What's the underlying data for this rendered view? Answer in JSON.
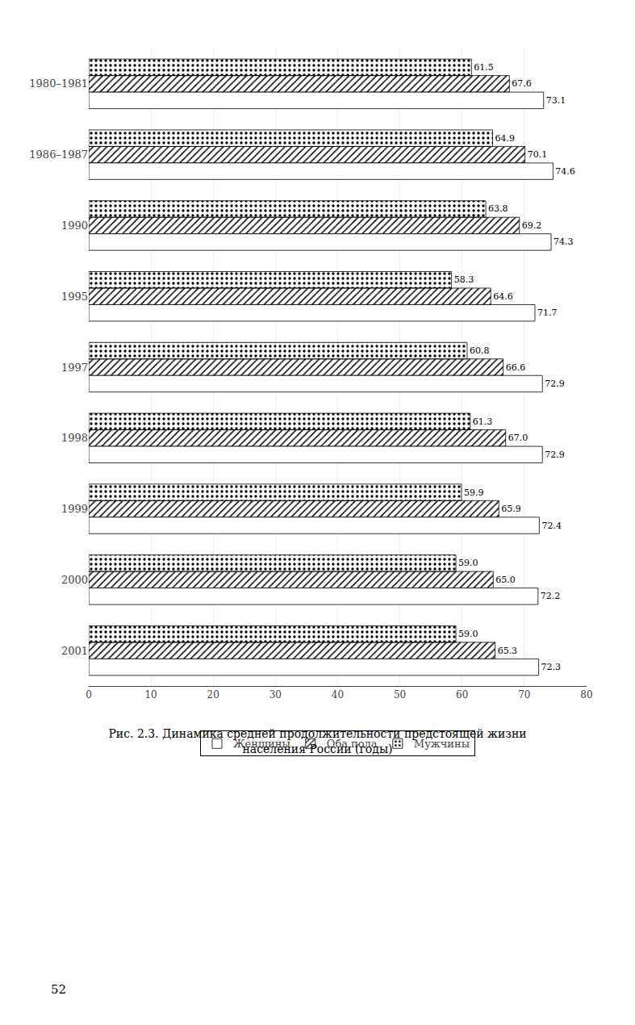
{
  "chart_data": {
    "type": "bar",
    "orientation": "horizontal",
    "title": "Рис. 2.3. Динамика средней продолжительности предстоящей жизни\nнаселения России (годы)",
    "categories": [
      "1980–1981",
      "1986–1987",
      "1990",
      "1995",
      "1997",
      "1998",
      "1999",
      "2000",
      "2001"
    ],
    "series": [
      {
        "name": "Мужчины",
        "color": "#bbbbbb",
        "values": [
          61.5,
          64.9,
          63.8,
          58.3,
          60.8,
          61.3,
          59.9,
          59.0,
          59.0
        ],
        "value_labels": [
          "61.5",
          "64.9",
          "63.8",
          "58.3",
          "60.8",
          "61.3",
          "59.9",
          "59.0",
          "59.0"
        ]
      },
      {
        "name": "Оба пола",
        "color": "#888888",
        "values": [
          67.6,
          70.1,
          69.2,
          64.6,
          66.6,
          67.0,
          65.9,
          65.0,
          65.3
        ],
        "value_labels": [
          "67.6",
          "70.1",
          "69.2",
          "64.6",
          "66.6",
          "67.0",
          "65.9",
          "65.0",
          "65.3"
        ]
      },
      {
        "name": "Женщины",
        "color": "#ffffff",
        "values": [
          73.1,
          74.6,
          74.3,
          71.7,
          72.9,
          72.9,
          72.4,
          72.2,
          72.3
        ],
        "value_labels": [
          "73.1",
          "74.6",
          "74.3",
          "71.7",
          "72.9",
          "72.9",
          "72.4",
          "72.2",
          "72.3"
        ]
      }
    ],
    "xlim": [
      0,
      80
    ],
    "xticks": [
      0,
      10,
      20,
      30,
      40,
      50,
      60,
      70,
      80
    ],
    "grid": true,
    "data_labels": true,
    "legend": "bottom",
    "annotations": [
      "52"
    ]
  }
}
